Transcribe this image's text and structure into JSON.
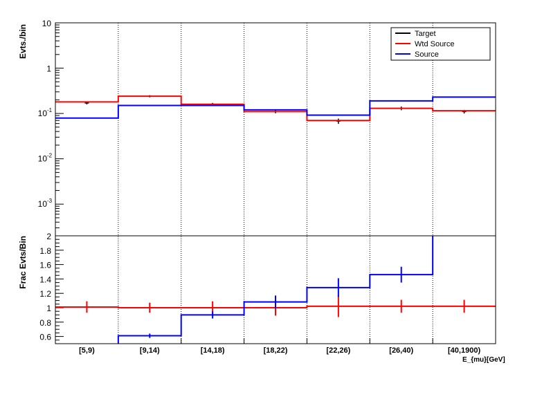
{
  "chart_data": [
    {
      "type": "line",
      "panel": "top",
      "ylabel": "Evts./bin",
      "yscale": "log",
      "ylim": [
        0.0002,
        10
      ],
      "yticks": [
        {
          "value": 10,
          "label": "10"
        },
        {
          "value": 1,
          "label": "1"
        },
        {
          "value": 0.1,
          "label": "10",
          "exp": "-1"
        },
        {
          "value": 0.01,
          "label": "10",
          "exp": "-2"
        },
        {
          "value": 0.001,
          "label": "10",
          "exp": "-3"
        }
      ],
      "categories": [
        "[5,9)",
        "[9,14)",
        "[14,18)",
        "[18,22)",
        "[22,26)",
        "[26,40)",
        "[40,1900)"
      ],
      "grid": "vertical-dotted",
      "legend_position": "top-right",
      "series": [
        {
          "name": "Target",
          "color": "#000000",
          "style": "points",
          "values": [
            0.17,
            0.24,
            0.16,
            0.11,
            0.068,
            0.13,
            0.11
          ],
          "errors": [
            0.012,
            0.013,
            0.011,
            0.009,
            0.009,
            0.012,
            0.01
          ]
        },
        {
          "name": "Wtd Source",
          "color": "#ff0000",
          "style": "step",
          "values": [
            0.18,
            0.24,
            0.16,
            0.11,
            0.07,
            0.13,
            0.115
          ]
        },
        {
          "name": "Source",
          "color": "#0000ff",
          "style": "step",
          "values": [
            0.079,
            0.15,
            0.15,
            0.12,
            0.092,
            0.19,
            0.23
          ]
        }
      ]
    },
    {
      "type": "line",
      "panel": "bottom",
      "ylabel": "Frac Evts/Bin",
      "ylim": [
        0.5,
        2.0
      ],
      "yticks": [
        {
          "value": 0.6,
          "label": "0.6"
        },
        {
          "value": 0.8,
          "label": "0.8"
        },
        {
          "value": 1.0,
          "label": "1"
        },
        {
          "value": 1.2,
          "label": "1.2"
        },
        {
          "value": 1.4,
          "label": "1.4"
        },
        {
          "value": 1.6,
          "label": "1.6"
        },
        {
          "value": 1.8,
          "label": "1.8"
        },
        {
          "value": 2.0,
          "label": "2"
        }
      ],
      "xlabel": "E_{mu}[GeV]",
      "categories": [
        "[5,9)",
        "[9,14)",
        "[14,18)",
        "[18,22)",
        "[22,26)",
        "[26,40)",
        "[40,1900)"
      ],
      "series": [
        {
          "name": "Wtd Source",
          "color": "#ff0000",
          "style": "step",
          "values": [
            1.01,
            1.0,
            1.0,
            1.0,
            1.02,
            1.02,
            1.02
          ],
          "errors": [
            0.08,
            0.07,
            0.09,
            0.11,
            0.15,
            0.09,
            0.09
          ]
        },
        {
          "name": "Source",
          "color": "#0000ff",
          "style": "step",
          "values": [
            0.49,
            0.61,
            0.9,
            1.08,
            1.28,
            1.46,
            2.01
          ],
          "errors": [
            0.0,
            0.03,
            0.05,
            0.09,
            0.13,
            0.11,
            0.0
          ]
        }
      ]
    }
  ]
}
